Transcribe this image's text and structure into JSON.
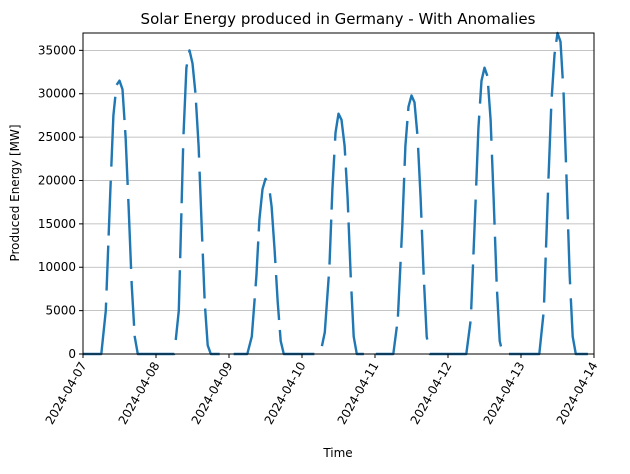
{
  "chart_data": {
    "type": "line",
    "title": "Solar Energy produced in Germany - With Anomalies",
    "xlabel": "Time",
    "ylabel": "Produced Energy [MW]",
    "xlim": [
      "2024-04-07",
      "2024-04-14"
    ],
    "ylim": [
      0,
      37000
    ],
    "x_ticks": [
      "2024-04-07",
      "2024-04-08",
      "2024-04-09",
      "2024-04-10",
      "2024-04-11",
      "2024-04-12",
      "2024-04-13",
      "2024-04-14"
    ],
    "y_ticks": [
      0,
      5000,
      10000,
      15000,
      20000,
      25000,
      30000,
      35000
    ],
    "grid": "horizontal",
    "legend": "none",
    "series_color": "#1f77b4",
    "series": [
      {
        "x": [
          "2024-04-07 00:00",
          "2024-04-07 03:00",
          "2024-04-07 06:00",
          "2024-04-07 07:30",
          "2024-04-07 09:00",
          "2024-04-07 10:00",
          "2024-04-07 11:00",
          "2024-04-07 12:00",
          "2024-04-07 13:00",
          "2024-04-07 14:00",
          "2024-04-07 15:00",
          "2024-04-07 16:00",
          "2024-04-07 17:00",
          "2024-04-07 18:00",
          "2024-04-07 19:00",
          "2024-04-07 20:30",
          "2024-04-07 22:00",
          "2024-04-08 03:00",
          "2024-04-08 06:00",
          "2024-04-08 07:30",
          "2024-04-08 09:00",
          "2024-04-08 10:00",
          "2024-04-08 11:00",
          "2024-04-08 12:00",
          "2024-04-08 13:00",
          "2024-04-08 14:00",
          "2024-04-08 15:00",
          "2024-04-08 16:00",
          "2024-04-08 17:00",
          "2024-04-08 18:00",
          "2024-04-08 19:00",
          "2024-04-08 20:30",
          "2024-04-08 22:00",
          "2024-04-09 03:00",
          "2024-04-09 06:00",
          "2024-04-09 07:30",
          "2024-04-09 09:00",
          "2024-04-09 10:00",
          "2024-04-09 11:00",
          "2024-04-09 12:00",
          "2024-04-09 13:00",
          "2024-04-09 14:00",
          "2024-04-09 15:00",
          "2024-04-09 16:00",
          "2024-04-09 17:00",
          "2024-04-09 18:00",
          "2024-04-09 19:00",
          "2024-04-09 20:30",
          "2024-04-09 22:00",
          "2024-04-10 03:00",
          "2024-04-10 06:00",
          "2024-04-10 07:30",
          "2024-04-10 09:00",
          "2024-04-10 10:00",
          "2024-04-10 11:00",
          "2024-04-10 12:00",
          "2024-04-10 13:00",
          "2024-04-10 14:00",
          "2024-04-10 15:00",
          "2024-04-10 16:00",
          "2024-04-10 17:00",
          "2024-04-10 18:00",
          "2024-04-10 19:00",
          "2024-04-10 20:30",
          "2024-04-10 22:00",
          "2024-04-11 03:00",
          "2024-04-11 06:00",
          "2024-04-11 07:30",
          "2024-04-11 09:00",
          "2024-04-11 10:00",
          "2024-04-11 11:00",
          "2024-04-11 12:00",
          "2024-04-11 13:00",
          "2024-04-11 14:00",
          "2024-04-11 15:00",
          "2024-04-11 16:00",
          "2024-04-11 17:00",
          "2024-04-11 18:00",
          "2024-04-11 19:00",
          "2024-04-11 20:30",
          "2024-04-11 22:00",
          "2024-04-12 03:00",
          "2024-04-12 06:00",
          "2024-04-12 07:30",
          "2024-04-12 09:00",
          "2024-04-12 10:00",
          "2024-04-12 11:00",
          "2024-04-12 12:00",
          "2024-04-12 13:00",
          "2024-04-12 14:00",
          "2024-04-12 15:00",
          "2024-04-12 16:00",
          "2024-04-12 17:00",
          "2024-04-12 18:00",
          "2024-04-12 19:00",
          "2024-04-12 20:30",
          "2024-04-12 22:00",
          "2024-04-13 03:00",
          "2024-04-13 06:00",
          "2024-04-13 07:30",
          "2024-04-13 09:00",
          "2024-04-13 10:00",
          "2024-04-13 11:00",
          "2024-04-13 12:00",
          "2024-04-13 13:00",
          "2024-04-13 14:00",
          "2024-04-13 15:00",
          "2024-04-13 16:00",
          "2024-04-13 17:00",
          "2024-04-13 18:00",
          "2024-04-13 19:00",
          "2024-04-13 20:30",
          "2024-04-13 22:00"
        ],
        "y": [
          0,
          0,
          0,
          5000,
          19000,
          27500,
          31000,
          31500,
          30500,
          25000,
          17000,
          8000,
          2000,
          0,
          0,
          0,
          0,
          0,
          0,
          5000,
          25000,
          33000,
          35000,
          33500,
          30000,
          24000,
          15000,
          6000,
          1000,
          0,
          0,
          0,
          0,
          0,
          0,
          2000,
          9000,
          15500,
          19000,
          20200,
          19800,
          17000,
          12000,
          6000,
          1500,
          0,
          0,
          0,
          0,
          0,
          0,
          2500,
          10000,
          19000,
          25500,
          27700,
          27000,
          24000,
          18000,
          9000,
          2000,
          0,
          0,
          0,
          0,
          0,
          0,
          4000,
          15000,
          24000,
          28500,
          29800,
          29000,
          25000,
          18000,
          9000,
          2000,
          0,
          0,
          0,
          0,
          0,
          0,
          4000,
          17000,
          26000,
          31500,
          33000,
          32000,
          27000,
          18000,
          8000,
          1500,
          0,
          0,
          0,
          0,
          0,
          0,
          5000,
          20000,
          29000,
          34500,
          37000,
          36000,
          30000,
          20000,
          9000,
          2000,
          0,
          0,
          0,
          0
        ]
      }
    ]
  }
}
